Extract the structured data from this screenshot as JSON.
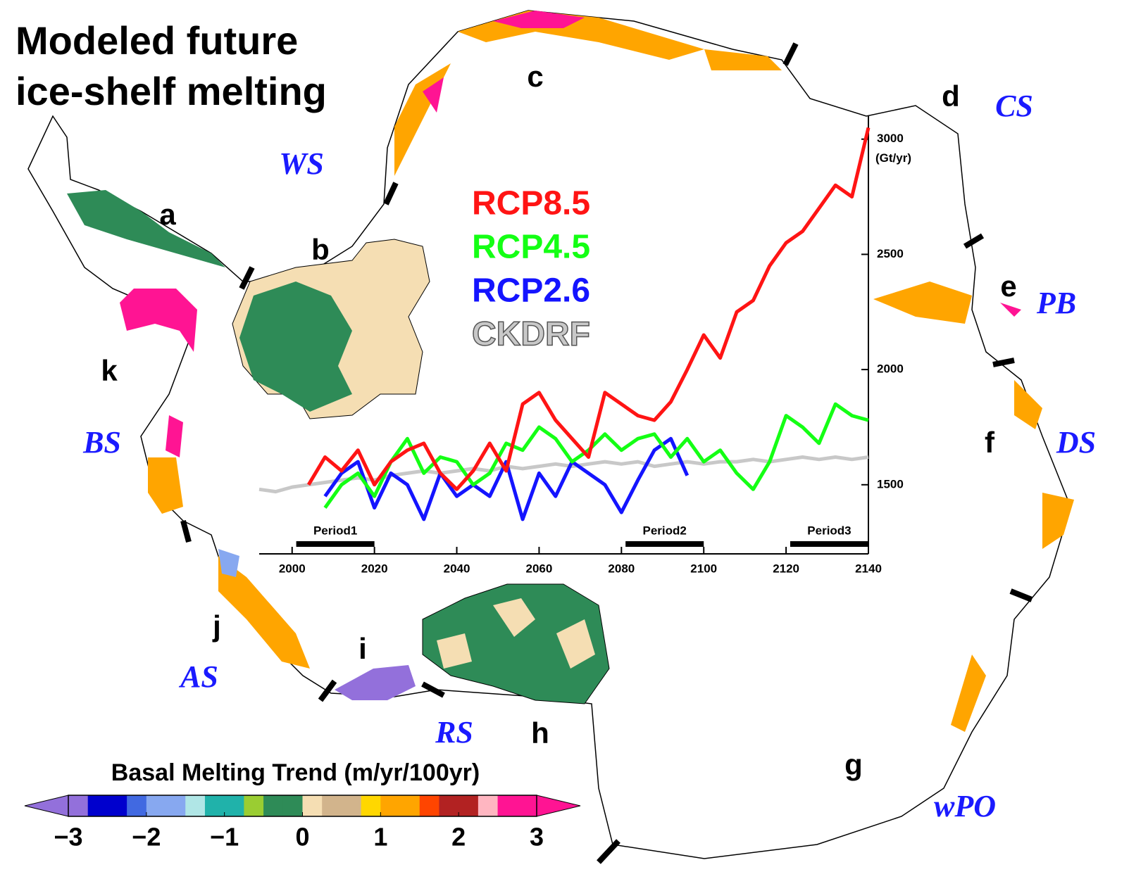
{
  "title_lines": [
    "Modeled future",
    "ice-shelf melting"
  ],
  "region_labels": [
    "a",
    "b",
    "c",
    "d",
    "e",
    "f",
    "g",
    "h",
    "i",
    "j",
    "k"
  ],
  "sea_labels": [
    "WS",
    "CS",
    "PB",
    "DS",
    "wPO",
    "RS",
    "AS",
    "BS"
  ],
  "colorbar": {
    "title": "Basal Melting Trend (m/yr/100yr)",
    "range": [
      -3,
      3
    ],
    "ticks": [
      {
        "value": -3,
        "label": "−3"
      },
      {
        "value": -2,
        "label": "−2"
      },
      {
        "value": -1,
        "label": "−1"
      },
      0,
      1,
      2,
      3
    ],
    "under_color": "#9370db",
    "over_color": "#ff1493",
    "colors": [
      "#9370db",
      "#0000cd",
      "#0000cd",
      "#4169e1",
      "#87a8f0",
      "#87a8f0",
      "#b0e6e6",
      "#20b2aa",
      "#20b2aa",
      "#9acd32",
      "#2e8b57",
      "#2e8b57",
      "#f5deb3",
      "#d2b48c",
      "#d2b48c",
      "#ffd700",
      "#ffa500",
      "#ffa500",
      "#ff4500",
      "#b22222",
      "#b22222",
      "#ffb6c1",
      "#ff1493",
      "#ff1493"
    ]
  },
  "chart_data": {
    "type": "line",
    "y_axis_unit": "(Gt/yr)",
    "y_axis_position": "right",
    "x": [
      1992,
      1996,
      2000,
      2004,
      2008,
      2012,
      2016,
      2020,
      2024,
      2028,
      2032,
      2036,
      2040,
      2044,
      2048,
      2052,
      2056,
      2060,
      2064,
      2068,
      2072,
      2076,
      2080,
      2084,
      2088,
      2092,
      2096,
      2100,
      2104,
      2108,
      2112,
      2116,
      2120,
      2124,
      2128,
      2132,
      2136,
      2140
    ],
    "xlim": [
      1992,
      2140
    ],
    "xticks": [
      2000,
      2020,
      2040,
      2060,
      2080,
      2100,
      2120,
      2140
    ],
    "ylim": [
      1200,
      3100
    ],
    "yticks": [
      1500,
      2000,
      2500,
      3000
    ],
    "series": [
      {
        "name": "CKDRF",
        "color": "#c8c8c8",
        "values": [
          1480,
          1470,
          1490,
          1500,
          1510,
          1520,
          1530,
          1520,
          1540,
          1550,
          1560,
          1550,
          1560,
          1570,
          1560,
          1580,
          1570,
          1580,
          1590,
          1580,
          1590,
          1600,
          1590,
          1600,
          1580,
          1590,
          1600,
          1590,
          1600,
          1600,
          1610,
          1600,
          1610,
          1620,
          1610,
          1620,
          1610,
          1620
        ]
      },
      {
        "name": "RCP2.6",
        "color": "#1414ff",
        "values": [
          null,
          null,
          null,
          null,
          1450,
          1550,
          1600,
          1400,
          1550,
          1500,
          1350,
          1550,
          1450,
          1500,
          1450,
          1600,
          1350,
          1550,
          1450,
          1600,
          1550,
          1500,
          1380,
          1520,
          1650,
          1700,
          1540,
          null,
          null,
          null,
          null,
          null,
          null,
          null,
          null,
          null,
          null,
          null
        ]
      },
      {
        "name": "RCP4.5",
        "color": "#14ff14",
        "values": [
          null,
          null,
          null,
          null,
          1400,
          1500,
          1550,
          1450,
          1600,
          1700,
          1550,
          1620,
          1600,
          1500,
          1550,
          1680,
          1650,
          1750,
          1700,
          1600,
          1650,
          1720,
          1650,
          1700,
          1720,
          1620,
          1700,
          1600,
          1650,
          1550,
          1480,
          1600,
          1800,
          1750,
          1680,
          1850,
          1800,
          1780
        ]
      },
      {
        "name": "RCP8.5",
        "color": "#ff1414",
        "values": [
          null,
          null,
          null,
          1500,
          1620,
          1560,
          1650,
          1500,
          1600,
          1650,
          1680,
          1550,
          1480,
          1560,
          1680,
          1560,
          1850,
          1900,
          1780,
          1700,
          1620,
          1900,
          1850,
          1800,
          1780,
          1860,
          2000,
          2150,
          2050,
          2250,
          2300,
          2450,
          2550,
          2600,
          2700,
          2800,
          2750,
          3050
        ]
      }
    ],
    "legend_order": [
      3,
      2,
      1,
      0
    ],
    "periods": [
      {
        "label": "Period1",
        "range": [
          2001,
          2020
        ]
      },
      {
        "label": "Period2",
        "range": [
          2081,
          2100
        ]
      },
      {
        "label": "Period3",
        "range": [
          2121,
          2140
        ]
      }
    ]
  }
}
